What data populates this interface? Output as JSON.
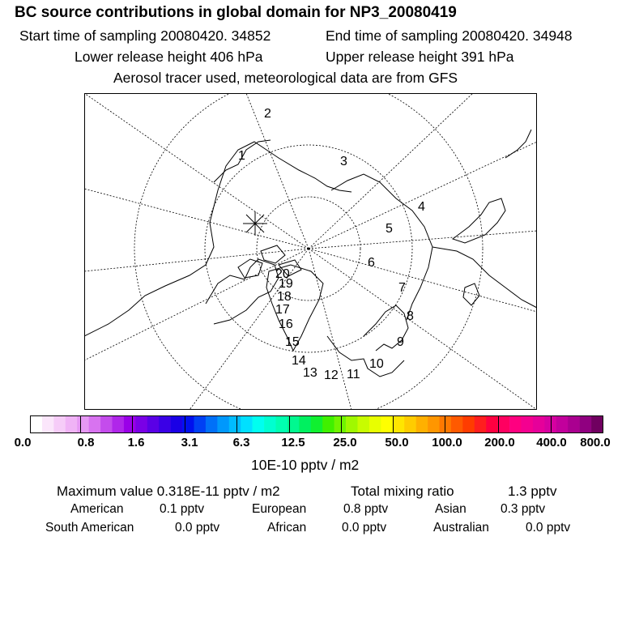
{
  "header": {
    "title": "BC  source contributions in global domain for NP3_20080419",
    "start_label": "Start time of sampling 20080420. 34852",
    "end_label": "End time of sampling 20080420. 34948",
    "lower_label": "Lower release height  406 hPa",
    "upper_label": "Upper release height  391 hPa",
    "tracer_note": "Aerosol tracer used, meteorological data are from GFS"
  },
  "map": {
    "projection": "north-polar-stereographic",
    "track_markers": [
      "1",
      "2",
      "3",
      "4",
      "5",
      "6",
      "7",
      "8",
      "9",
      "10",
      "11",
      "12",
      "13",
      "14",
      "15",
      "16",
      "17",
      "18",
      "19",
      "20"
    ],
    "release_marker": "star-cross-icon"
  },
  "colorbar": {
    "tick_labels": [
      "0.0",
      "0.8",
      "1.6",
      "3.1",
      "6.3",
      "12.5",
      "25.0",
      "50.0",
      "100.0",
      "200.0",
      "400.0",
      "800.0"
    ],
    "unit": "10E-10 pptv / m2",
    "colors": [
      "#ffffff",
      "#fbe6fb",
      "#f6ccf8",
      "#f0b3f6",
      "#e699f4",
      "#d873f0",
      "#c44cec",
      "#b026ea",
      "#9a00e8",
      "#7a00e6",
      "#5a00e6",
      "#3a00e6",
      "#1a00e6",
      "#0010ee",
      "#0040f4",
      "#0070f8",
      "#0098fc",
      "#00bcff",
      "#00e0ff",
      "#00fff0",
      "#00ffd0",
      "#00ffb0",
      "#00f890",
      "#00f060",
      "#10f030",
      "#40f000",
      "#70f400",
      "#a0f800",
      "#c8fc00",
      "#e8ff00",
      "#ffff00",
      "#ffe600",
      "#ffcc00",
      "#ffb000",
      "#ff9600",
      "#ff7800",
      "#ff5a00",
      "#ff3c00",
      "#ff1e1e",
      "#ff0040",
      "#ff0060",
      "#ff0080",
      "#f40090",
      "#e6009a",
      "#d600a0",
      "#c2009c",
      "#aa0090",
      "#900080",
      "#700060"
    ]
  },
  "stats": {
    "max_label": "Maximum value  0.318E-11 pptv / m2",
    "total_label": "Total mixing ratio",
    "total_value": "1.3 pptv"
  },
  "regions": [
    {
      "name": "American",
      "value": "0.1 pptv"
    },
    {
      "name": "European",
      "value": "0.8 pptv"
    },
    {
      "name": "Asian",
      "value": "0.3 pptv"
    },
    {
      "name": "South American",
      "value": "0.0 pptv"
    },
    {
      "name": "African",
      "value": "0.0 pptv"
    },
    {
      "name": "Australian",
      "value": "0.0 pptv"
    }
  ]
}
